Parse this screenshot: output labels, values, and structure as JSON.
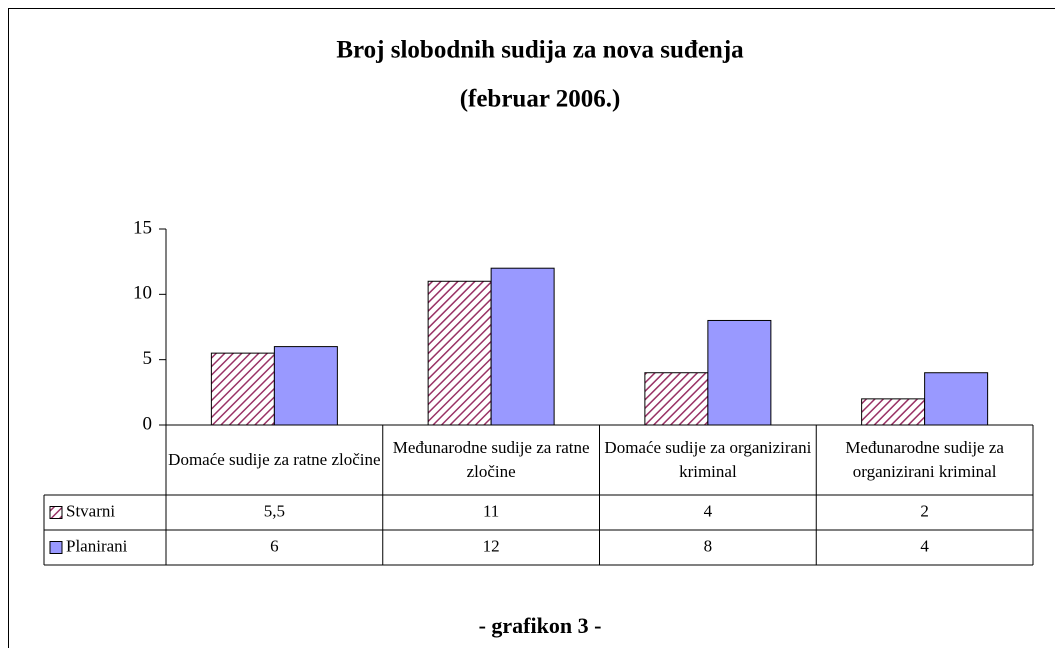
{
  "chart_data": {
    "type": "bar",
    "title": "Broj slobodnih sudija za nova suđenja",
    "subtitle": "(februar 2006.)",
    "caption": "- grafikon 3 -",
    "categories": [
      "Domaće sudije za ratne zločine",
      "Međunarodne sudije za ratne zločine",
      "Domaće sudije za organizirani kriminal",
      "Međunarodne sudije za organizirani kriminal"
    ],
    "series": [
      {
        "name": "Stvarni",
        "color": "#993366",
        "pattern": "hatch",
        "values": [
          5.5,
          11,
          4,
          2
        ],
        "value_labels": [
          "5,5",
          "11",
          "4",
          "2"
        ]
      },
      {
        "name": "Planirani",
        "color": "#9999ff",
        "values": [
          6,
          12,
          8,
          4
        ]
      }
    ],
    "ylim": [
      0,
      15
    ],
    "yticks": [
      0,
      5,
      10,
      15
    ],
    "grid": false,
    "legend": "table"
  }
}
